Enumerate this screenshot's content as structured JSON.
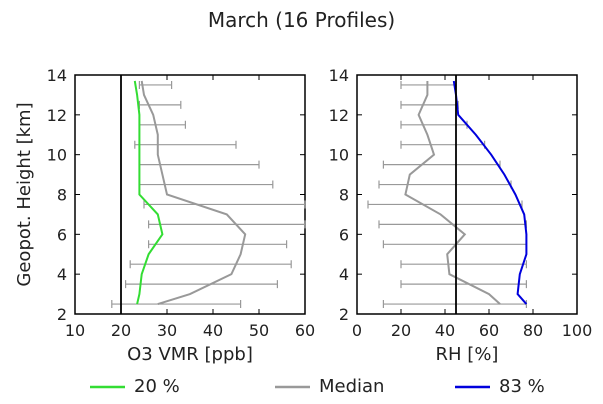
{
  "title": "March (16 Profiles)",
  "chart_data": [
    {
      "type": "line",
      "xlabel": "O3 VMR [ppb]",
      "ylabel": "Geopot. Height [km]",
      "xlim": [
        10,
        60
      ],
      "ylim": [
        2,
        14
      ],
      "xticks": [
        "10",
        "20",
        "30",
        "40",
        "50",
        "60"
      ],
      "yticks": [
        "2",
        "4",
        "6",
        "8",
        "10",
        "12",
        "14"
      ],
      "reference_line_x": 20,
      "y": [
        2.5,
        3,
        4,
        5,
        6,
        7,
        8,
        9,
        10,
        11,
        12,
        13,
        13.7
      ],
      "series": [
        {
          "name": "20 %",
          "color": "#33dd33",
          "values": [
            23.5,
            24,
            24.5,
            26,
            29,
            28,
            24,
            24,
            24,
            24,
            24,
            23.5,
            23
          ]
        },
        {
          "name": "Median",
          "color": "#999999",
          "values": [
            28,
            35,
            44,
            46,
            47,
            43,
            30,
            29,
            28,
            28,
            27,
            25,
            24.5
          ]
        },
        {
          "name": "83 %",
          "color": "#0000dd",
          "values": []
        }
      ],
      "error_bars": {
        "color": "#999999",
        "y": [
          2.5,
          3.5,
          4.5,
          5.5,
          6.5,
          7.5,
          8.5,
          9.5,
          10.5,
          11.5,
          12.5,
          13.5
        ],
        "low": [
          18,
          21,
          22,
          26,
          26,
          25,
          24,
          24,
          23,
          24,
          24,
          24
        ],
        "high": [
          46,
          54,
          57,
          56,
          60,
          60,
          53,
          50,
          45,
          34,
          33,
          31
        ],
        "center": [
          28,
          33,
          44,
          46,
          47,
          43,
          30,
          29,
          28,
          28,
          27,
          25
        ]
      }
    },
    {
      "type": "line",
      "xlabel": "RH [%]",
      "ylabel": "",
      "xlim": [
        0,
        100
      ],
      "ylim": [
        2,
        14
      ],
      "xticks": [
        "0",
        "20",
        "40",
        "60",
        "80",
        "100"
      ],
      "yticks": [
        "2",
        "4",
        "6",
        "8",
        "10",
        "12",
        "14"
      ],
      "reference_line_x": 45,
      "y": [
        2.5,
        3,
        4,
        5,
        6,
        7,
        8,
        9,
        10,
        11,
        12,
        13,
        13.7
      ],
      "series": [
        {
          "name": "83 %",
          "color": "#0000dd",
          "values": [
            77,
            73,
            74,
            77,
            77,
            76,
            72,
            67,
            61,
            54,
            46,
            45,
            44
          ]
        },
        {
          "name": "Median",
          "color": "#999999",
          "values": [
            65,
            60,
            42,
            41,
            49,
            38,
            22,
            24,
            35,
            32,
            28,
            32,
            32
          ]
        }
      ],
      "error_bars": {
        "color": "#999999",
        "y": [
          2.5,
          3.5,
          4.5,
          5.5,
          6.5,
          7.5,
          8.5,
          9.5,
          10.5,
          11.5,
          12.5,
          13.5
        ],
        "low": [
          12,
          20,
          20,
          12,
          10,
          5,
          10,
          12,
          20,
          20,
          20,
          20
        ],
        "high": [
          77,
          77,
          77,
          77,
          77,
          75,
          70,
          65,
          58,
          50,
          46,
          45
        ],
        "center": [
          65,
          52,
          42,
          41,
          49,
          38,
          22,
          24,
          35,
          32,
          28,
          32
        ]
      }
    }
  ],
  "legend": [
    {
      "label": "20 %",
      "color": "#33dd33"
    },
    {
      "label": "Median",
      "color": "#999999"
    },
    {
      "label": "83 %",
      "color": "#0000dd"
    }
  ]
}
